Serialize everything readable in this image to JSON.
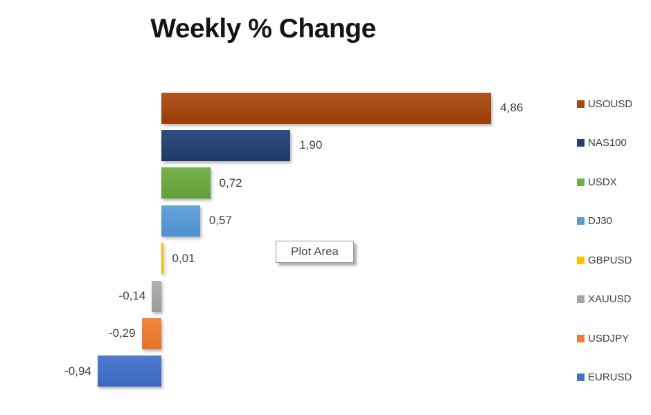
{
  "chart": {
    "title": "Weekly % Change",
    "plot_area_tooltip": "Plot Area",
    "background_color": "#ffffff",
    "label_text_color": "#404040"
  },
  "chart_data": {
    "type": "bar",
    "orientation": "horizontal",
    "title": "Weekly % Change",
    "grid": false,
    "legend_position": "right",
    "value_format": "comma-decimal",
    "categories": [
      "USOUSD",
      "NAS100",
      "USDX",
      "DJ30",
      "GBPUSD",
      "XAUUSD",
      "USDJPY",
      "EURUSD"
    ],
    "values": [
      4.86,
      1.9,
      0.72,
      0.57,
      0.01,
      -0.14,
      -0.29,
      -0.94
    ],
    "value_labels": [
      "4,86",
      "1,90",
      "0,72",
      "0,57",
      "0,01",
      "-0,14",
      "-0,29",
      "-0,94"
    ],
    "series": [
      {
        "name": "USOUSD",
        "value": 4.86,
        "label": "4,86",
        "color": "#A5490E",
        "color_top": "#B0561F",
        "color_bottom": "#9A3D04"
      },
      {
        "name": "NAS100",
        "value": 1.9,
        "label": "1,90",
        "color": "#24406F",
        "color_top": "#2E4F82",
        "color_bottom": "#203A66"
      },
      {
        "name": "USDX",
        "value": 0.72,
        "label": "0,72",
        "color": "#70AD47",
        "color_top": "#76B14C",
        "color_bottom": "#62A038"
      },
      {
        "name": "DJ30",
        "value": 0.57,
        "label": "0,57",
        "color": "#5B9BD5",
        "color_top": "#67A3DA",
        "color_bottom": "#4E90CE"
      },
      {
        "name": "GBPUSD",
        "value": 0.01,
        "label": "0,01",
        "color": "#FFC000",
        "color_top": "#FFC409",
        "color_bottom": "#F2B600"
      },
      {
        "name": "XAUUSD",
        "value": -0.14,
        "label": "-0,14",
        "color": "#A5A5A5",
        "color_top": "#AFAFAF",
        "color_bottom": "#9B9B9B"
      },
      {
        "name": "USDJPY",
        "value": -0.29,
        "label": "-0,29",
        "color": "#ED7D31",
        "color_top": "#F08A3C",
        "color_bottom": "#E7722A"
      },
      {
        "name": "EURUSD",
        "value": -0.94,
        "label": "-0,94",
        "color": "#4472C4",
        "color_top": "#4E7BD0",
        "color_bottom": "#3B68BE"
      }
    ]
  }
}
